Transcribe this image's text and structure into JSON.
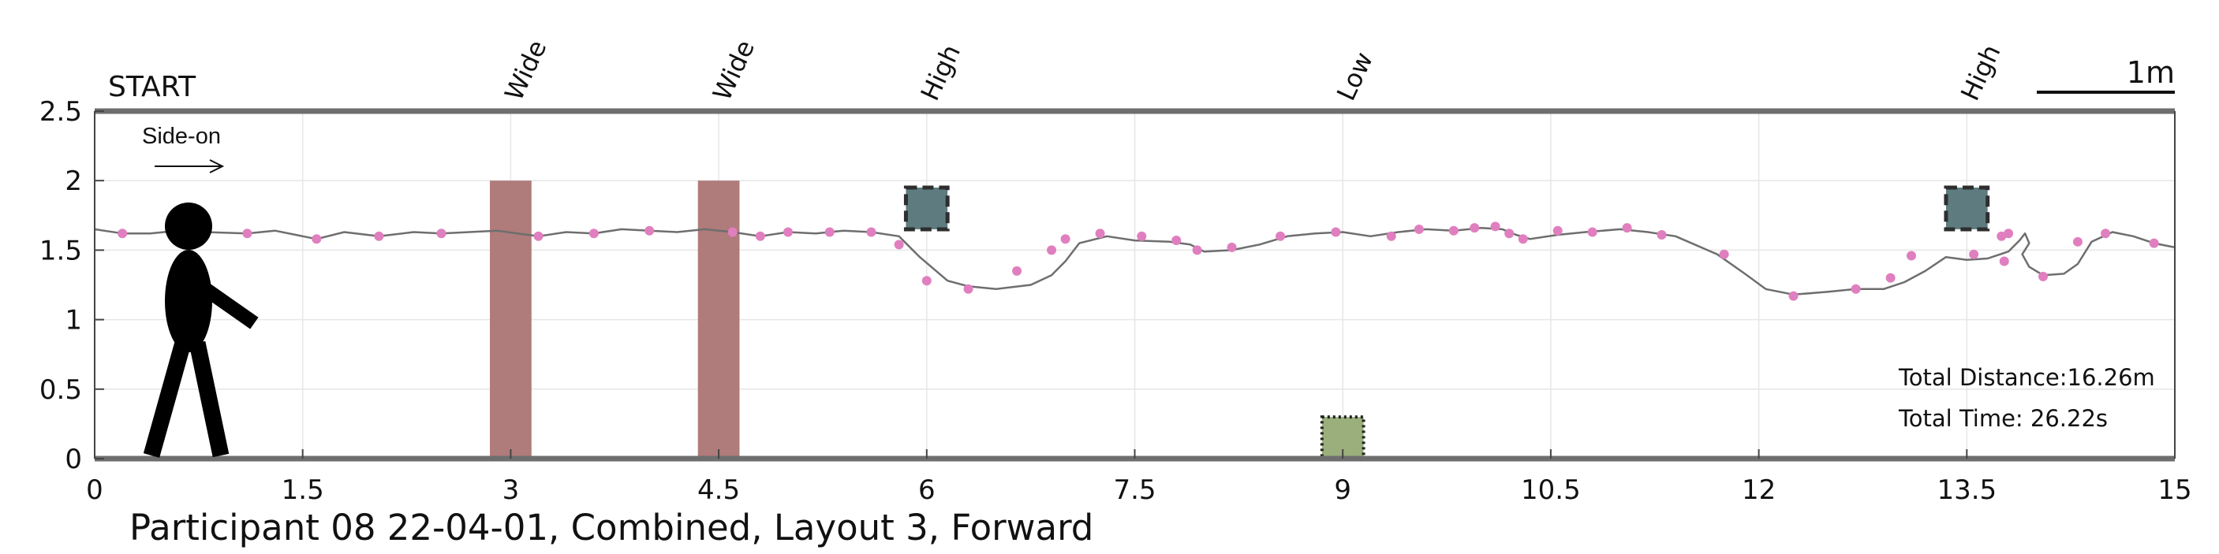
{
  "chart_data": {
    "type": "line",
    "title": "Participant 08 22-04-01, Combined, Layout 3, Forward",
    "xlim": [
      0,
      15
    ],
    "ylim": [
      0,
      2.5
    ],
    "x_ticks": [
      0,
      1.5,
      3,
      4.5,
      6,
      7.5,
      9,
      10.5,
      12,
      13.5,
      15
    ],
    "x_tick_labels": [
      "0",
      "1.5",
      "3",
      "4.5",
      "6",
      "7.5",
      "9",
      "10.5",
      "12",
      "13.5",
      "15"
    ],
    "y_ticks": [
      0,
      0.5,
      1,
      1.5,
      2,
      2.5
    ],
    "y_tick_labels": [
      "0",
      "0.5",
      "1",
      "1.5",
      "2",
      "2.5"
    ],
    "grid": true,
    "start_label": "START",
    "direction_label": "Side-on",
    "scale_bar_label": "1m",
    "scale_bar_length": 1,
    "total_distance": "Total Distance:16.26m",
    "total_time": "Total Time: 26.22s",
    "colors": {
      "trajectory": "#6e6e6e",
      "markers": "#e07fbf",
      "wide_obstacle": "#b07b7b",
      "high_obstacle": "#5e7c80",
      "low_obstacle": "#9aaf7c",
      "axis": "#6e6e6e"
    },
    "obstacles": [
      {
        "label": "Wide",
        "kind": "wide",
        "x_range": [
          2.85,
          3.15
        ],
        "y_range": [
          0,
          2.0
        ]
      },
      {
        "label": "Wide",
        "kind": "wide",
        "x_range": [
          4.35,
          4.65
        ],
        "y_range": [
          0,
          2.0
        ]
      },
      {
        "label": "High",
        "kind": "high",
        "x_range": [
          5.85,
          6.15
        ],
        "y_range": [
          1.65,
          1.95
        ]
      },
      {
        "label": "Low",
        "kind": "low",
        "x_range": [
          8.85,
          9.15
        ],
        "y_range": [
          0,
          0.3
        ]
      },
      {
        "label": "High",
        "kind": "high",
        "x_range": [
          13.35,
          13.65
        ],
        "y_range": [
          1.65,
          1.95
        ]
      }
    ],
    "trajectory": [
      [
        0.0,
        1.65
      ],
      [
        0.2,
        1.62
      ],
      [
        0.4,
        1.62
      ],
      [
        0.6,
        1.64
      ],
      [
        0.8,
        1.63
      ],
      [
        1.1,
        1.62
      ],
      [
        1.3,
        1.64
      ],
      [
        1.6,
        1.58
      ],
      [
        1.8,
        1.63
      ],
      [
        2.05,
        1.6
      ],
      [
        2.3,
        1.63
      ],
      [
        2.5,
        1.62
      ],
      [
        2.7,
        1.63
      ],
      [
        2.9,
        1.64
      ],
      [
        3.05,
        1.62
      ],
      [
        3.2,
        1.6
      ],
      [
        3.4,
        1.63
      ],
      [
        3.6,
        1.62
      ],
      [
        3.8,
        1.65
      ],
      [
        4.0,
        1.64
      ],
      [
        4.2,
        1.63
      ],
      [
        4.4,
        1.65
      ],
      [
        4.6,
        1.63
      ],
      [
        4.8,
        1.6
      ],
      [
        5.0,
        1.63
      ],
      [
        5.2,
        1.62
      ],
      [
        5.4,
        1.64
      ],
      [
        5.6,
        1.63
      ],
      [
        5.8,
        1.6
      ],
      [
        5.95,
        1.45
      ],
      [
        6.15,
        1.28
      ],
      [
        6.3,
        1.24
      ],
      [
        6.5,
        1.22
      ],
      [
        6.75,
        1.25
      ],
      [
        6.9,
        1.32
      ],
      [
        7.0,
        1.42
      ],
      [
        7.1,
        1.55
      ],
      [
        7.3,
        1.6
      ],
      [
        7.5,
        1.57
      ],
      [
        7.75,
        1.56
      ],
      [
        7.9,
        1.54
      ],
      [
        8.0,
        1.49
      ],
      [
        8.2,
        1.5
      ],
      [
        8.4,
        1.54
      ],
      [
        8.6,
        1.6
      ],
      [
        8.8,
        1.62
      ],
      [
        9.0,
        1.63
      ],
      [
        9.2,
        1.6
      ],
      [
        9.4,
        1.63
      ],
      [
        9.6,
        1.65
      ],
      [
        9.8,
        1.64
      ],
      [
        10.0,
        1.66
      ],
      [
        10.15,
        1.65
      ],
      [
        10.25,
        1.61
      ],
      [
        10.35,
        1.58
      ],
      [
        10.55,
        1.61
      ],
      [
        10.75,
        1.63
      ],
      [
        11.0,
        1.65
      ],
      [
        11.2,
        1.63
      ],
      [
        11.4,
        1.6
      ],
      [
        11.7,
        1.47
      ],
      [
        11.9,
        1.33
      ],
      [
        12.05,
        1.22
      ],
      [
        12.25,
        1.18
      ],
      [
        12.5,
        1.2
      ],
      [
        12.7,
        1.22
      ],
      [
        12.9,
        1.22
      ],
      [
        13.05,
        1.27
      ],
      [
        13.2,
        1.35
      ],
      [
        13.35,
        1.45
      ],
      [
        13.5,
        1.43
      ],
      [
        13.65,
        1.44
      ],
      [
        13.8,
        1.49
      ],
      [
        13.88,
        1.57
      ],
      [
        13.92,
        1.62
      ],
      [
        13.95,
        1.55
      ],
      [
        13.9,
        1.47
      ],
      [
        13.95,
        1.38
      ],
      [
        14.05,
        1.32
      ],
      [
        14.2,
        1.33
      ],
      [
        14.3,
        1.4
      ],
      [
        14.4,
        1.56
      ],
      [
        14.55,
        1.63
      ],
      [
        14.7,
        1.6
      ],
      [
        14.85,
        1.55
      ],
      [
        15.0,
        1.52
      ]
    ],
    "markers": [
      [
        0.2,
        1.62
      ],
      [
        1.1,
        1.62
      ],
      [
        1.6,
        1.58
      ],
      [
        2.05,
        1.6
      ],
      [
        2.5,
        1.62
      ],
      [
        3.2,
        1.6
      ],
      [
        3.6,
        1.62
      ],
      [
        4.0,
        1.64
      ],
      [
        4.6,
        1.63
      ],
      [
        4.8,
        1.6
      ],
      [
        5.0,
        1.63
      ],
      [
        5.3,
        1.63
      ],
      [
        5.6,
        1.63
      ],
      [
        5.8,
        1.54
      ],
      [
        6.0,
        1.28
      ],
      [
        6.3,
        1.22
      ],
      [
        6.65,
        1.35
      ],
      [
        6.9,
        1.5
      ],
      [
        7.0,
        1.58
      ],
      [
        7.25,
        1.62
      ],
      [
        7.55,
        1.6
      ],
      [
        7.8,
        1.57
      ],
      [
        7.95,
        1.5
      ],
      [
        8.2,
        1.52
      ],
      [
        8.55,
        1.6
      ],
      [
        8.95,
        1.63
      ],
      [
        9.35,
        1.6
      ],
      [
        9.55,
        1.65
      ],
      [
        9.8,
        1.64
      ],
      [
        9.95,
        1.66
      ],
      [
        10.1,
        1.67
      ],
      [
        10.2,
        1.62
      ],
      [
        10.3,
        1.58
      ],
      [
        10.55,
        1.64
      ],
      [
        10.8,
        1.63
      ],
      [
        11.05,
        1.66
      ],
      [
        11.3,
        1.61
      ],
      [
        11.75,
        1.47
      ],
      [
        12.25,
        1.17
      ],
      [
        12.7,
        1.22
      ],
      [
        12.95,
        1.3
      ],
      [
        13.1,
        1.46
      ],
      [
        13.55,
        1.47
      ],
      [
        13.75,
        1.6
      ],
      [
        13.8,
        1.62
      ],
      [
        13.77,
        1.42
      ],
      [
        14.05,
        1.31
      ],
      [
        14.3,
        1.56
      ],
      [
        14.5,
        1.62
      ],
      [
        14.85,
        1.55
      ]
    ]
  }
}
